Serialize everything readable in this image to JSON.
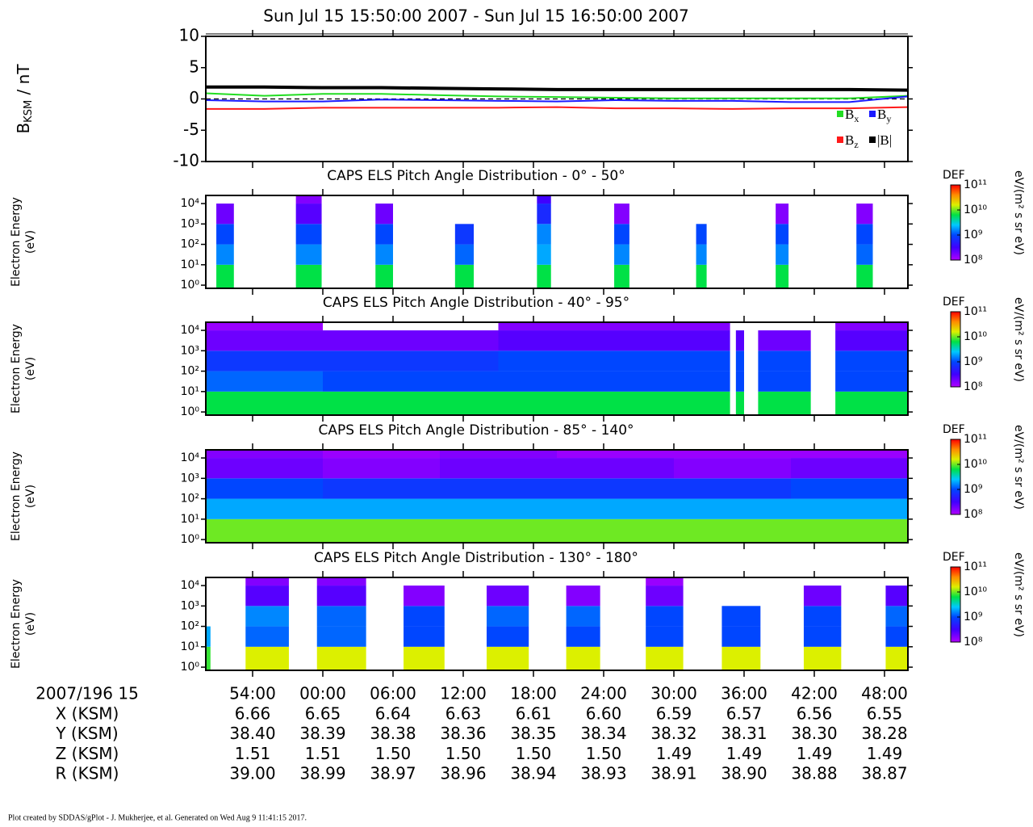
{
  "title": "Sun Jul 15 15:50:00 2007 - Sun Jul 15 16:50:00 2007",
  "footer": "Plot created by SDDAS/gPlot - J. Mukherjee, et al.  Generated on Wed Aug 9 11:41:15 2017.",
  "chart_data": [
    {
      "type": "line",
      "ylabel": [
        "B",
        "KSM",
        " / nT"
      ],
      "xlim": [
        "15:50:00",
        "16:50:00"
      ],
      "xticks": [
        "15:54:00",
        "16:00:00",
        "16:06:00",
        "16:12:00",
        "16:18:00",
        "16:24:00",
        "16:30:00",
        "16:36:00",
        "16:42:00",
        "16:48:00"
      ],
      "ylim": [
        -10,
        10
      ],
      "yticks": [
        -10,
        -5,
        0,
        5,
        10
      ],
      "x": [
        "15:50:00",
        "15:55:00",
        "16:00:00",
        "16:05:00",
        "16:10:00",
        "16:15:00",
        "16:20:00",
        "16:25:00",
        "16:30:00",
        "16:35:00",
        "16:40:00",
        "16:45:00",
        "16:50:00"
      ],
      "series": [
        {
          "name": "Bx",
          "color": "#22dd22",
          "values": [
            0.9,
            0.5,
            0.8,
            0.8,
            0.6,
            0.4,
            0.3,
            0.2,
            0.1,
            0.1,
            0.1,
            0.1,
            0.5
          ]
        },
        {
          "name": "By",
          "color": "#1a1aff",
          "values": [
            -0.2,
            -0.4,
            -0.4,
            -0.1,
            -0.2,
            -0.3,
            -0.4,
            -0.2,
            -0.3,
            -0.3,
            -0.5,
            -0.5,
            0.4
          ]
        },
        {
          "name": "Bz",
          "color": "#ff1a1a",
          "values": [
            -1.6,
            -1.6,
            -1.4,
            -1.4,
            -1.4,
            -1.4,
            -1.3,
            -1.5,
            -1.5,
            -1.6,
            -1.5,
            -1.5,
            -1.3
          ]
        },
        {
          "name": "|B|",
          "color": "#000000",
          "values": [
            1.9,
            1.9,
            1.8,
            1.8,
            1.7,
            1.6,
            1.5,
            1.5,
            1.5,
            1.5,
            1.5,
            1.5,
            1.4
          ]
        }
      ]
    },
    {
      "type": "heatmap",
      "title": "CAPS ELS Pitch Angle Distribution - 0° - 50°",
      "ylabel": [
        "Electron Energy",
        "(eV)"
      ],
      "log": true,
      "ylim": [
        0.7,
        25000
      ],
      "yticks": [
        {
          "value": 1,
          "label": "10⁰"
        },
        {
          "value": 10,
          "label": "10¹"
        },
        {
          "value": 100,
          "label": "10²"
        },
        {
          "value": 1000,
          "label": "10³"
        },
        {
          "value": 10000,
          "label": "10⁴"
        }
      ],
      "xlim": [
        "15:50:00",
        "16:50:00"
      ],
      "xticks": [
        "15:54:00",
        "16:00:00",
        "16:06:00",
        "16:12:00",
        "16:18:00",
        "16:24:00",
        "16:30:00",
        "16:36:00",
        "16:42:00",
        "16:48:00"
      ],
      "bins": [
        "15:50:00",
        "15:50:54",
        "15:52:24",
        "15:57:42",
        "15:59:54",
        "16:04:30",
        "16:06:00",
        "16:11:18",
        "16:12:54",
        "16:18:18",
        "16:19:30",
        "16:24:54",
        "16:26:12",
        "16:31:54",
        "16:32:48",
        "16:38:42",
        "16:39:48",
        "16:45:36",
        "16:47:00",
        "16:50:00"
      ],
      "values": [
        null,
        [
          9.8,
          9.2,
          9.0,
          8.3,
          null
        ],
        null,
        [
          9.8,
          9.2,
          9.0,
          8.4,
          8.2
        ],
        null,
        [
          9.8,
          9.2,
          9.0,
          8.3,
          null
        ],
        null,
        [
          9.8,
          9.1,
          8.9,
          null,
          null
        ],
        null,
        [
          9.8,
          9.3,
          9.2,
          8.8,
          8.5
        ],
        null,
        [
          9.8,
          9.2,
          9.0,
          8.2,
          null
        ],
        null,
        [
          9.8,
          9.2,
          9.0,
          null,
          null
        ],
        null,
        [
          9.8,
          9.2,
          9.0,
          8.2,
          null
        ],
        null,
        [
          9.8,
          9.1,
          9.0,
          8.2,
          null
        ],
        null
      ],
      "colorbar": {
        "label": "DEF",
        "unit": "eV/(m² s sr eV)",
        "lim": [
          8,
          11
        ],
        "ticks": [
          {
            "value": 8,
            "label": "10⁸"
          },
          {
            "value": 9,
            "label": "10⁹"
          },
          {
            "value": 10,
            "label": "10¹⁰"
          },
          {
            "value": 11,
            "label": "10¹¹"
          }
        ]
      }
    },
    {
      "type": "heatmap",
      "title": "CAPS ELS Pitch Angle Distribution - 40° - 95°",
      "ylabel": [
        "Electron Energy",
        "(eV)"
      ],
      "log": true,
      "ylim": [
        0.7,
        25000
      ],
      "yticks": [
        {
          "value": 1,
          "label": "10⁰"
        },
        {
          "value": 10,
          "label": "10¹"
        },
        {
          "value": 100,
          "label": "10²"
        },
        {
          "value": 1000,
          "label": "10³"
        },
        {
          "value": 10000,
          "label": "10⁴"
        }
      ],
      "xlim": [
        "15:50:00",
        "16:50:00"
      ],
      "xticks": [
        "15:54:00",
        "16:00:00",
        "16:06:00",
        "16:12:00",
        "16:18:00",
        "16:24:00",
        "16:30:00",
        "16:36:00",
        "16:42:00",
        "16:48:00"
      ],
      "bins": [
        "15:50:00",
        "16:00:00",
        "16:15:00",
        "16:34:48",
        "16:35:18",
        "16:36:00",
        "16:37:12",
        "16:41:42",
        "16:43:48",
        "16:50:00"
      ],
      "values": [
        [
          9.8,
          9.1,
          8.9,
          8.3,
          8.1
        ],
        [
          9.8,
          9.0,
          8.9,
          8.3,
          null
        ],
        [
          9.8,
          9.0,
          9.0,
          8.4,
          8.2
        ],
        null,
        [
          9.8,
          9.0,
          9.0,
          8.4,
          null
        ],
        null,
        [
          9.8,
          9.0,
          9.0,
          8.3,
          null
        ],
        null,
        [
          9.8,
          9.0,
          9.0,
          8.4,
          8.2
        ]
      ],
      "colorbar": {
        "label": "DEF",
        "unit": "eV/(m² s sr eV)",
        "lim": [
          8,
          11
        ],
        "ticks": [
          {
            "value": 8,
            "label": "10⁸"
          },
          {
            "value": 9,
            "label": "10⁹"
          },
          {
            "value": 10,
            "label": "10¹⁰"
          },
          {
            "value": 11,
            "label": "10¹¹"
          }
        ]
      }
    },
    {
      "type": "heatmap",
      "title": "CAPS ELS Pitch Angle Distribution - 85° - 140°",
      "ylabel": [
        "Electron Energy",
        "(eV)"
      ],
      "log": true,
      "ylim": [
        0.7,
        25000
      ],
      "yticks": [
        {
          "value": 1,
          "label": "10⁰"
        },
        {
          "value": 10,
          "label": "10¹"
        },
        {
          "value": 100,
          "label": "10²"
        },
        {
          "value": 1000,
          "label": "10³"
        },
        {
          "value": 10000,
          "label": "10⁴"
        }
      ],
      "xlim": [
        "15:50:00",
        "16:50:00"
      ],
      "xticks": [
        "15:54:00",
        "16:00:00",
        "16:06:00",
        "16:12:00",
        "16:18:00",
        "16:24:00",
        "16:30:00",
        "16:36:00",
        "16:42:00",
        "16:48:00"
      ],
      "bins": [
        "15:50:00",
        "16:00:00",
        "16:10:00",
        "16:20:00",
        "16:30:00",
        "16:40:00",
        "16:50:00"
      ],
      "values": [
        [
          10.0,
          9.3,
          9.0,
          8.3,
          8.2
        ],
        [
          10.0,
          9.3,
          8.9,
          8.2,
          8.1
        ],
        [
          10.0,
          9.3,
          8.9,
          8.3,
          8.2
        ],
        [
          10.0,
          9.3,
          8.9,
          8.3,
          8.1
        ],
        [
          10.0,
          9.3,
          8.9,
          8.2,
          8.1
        ],
        [
          10.0,
          9.3,
          9.0,
          8.3,
          8.1
        ]
      ],
      "colorbar": {
        "label": "DEF",
        "unit": "eV/(m² s sr eV)",
        "lim": [
          8,
          11
        ],
        "ticks": [
          {
            "value": 8,
            "label": "10⁸"
          },
          {
            "value": 9,
            "label": "10⁹"
          },
          {
            "value": 10,
            "label": "10¹⁰"
          },
          {
            "value": 11,
            "label": "10¹¹"
          }
        ]
      }
    },
    {
      "type": "heatmap",
      "title": "CAPS ELS Pitch Angle Distribution - 130° - 180°",
      "ylabel": [
        "Electron Energy",
        "(eV)"
      ],
      "log": true,
      "ylim": [
        0.7,
        25000
      ],
      "yticks": [
        {
          "value": 1,
          "label": "10⁰"
        },
        {
          "value": 10,
          "label": "10¹"
        },
        {
          "value": 100,
          "label": "10²"
        },
        {
          "value": 1000,
          "label": "10³"
        },
        {
          "value": 10000,
          "label": "10⁴"
        }
      ],
      "xlim": [
        "15:50:00",
        "16:50:00"
      ],
      "xlabel": "2007/196 15",
      "xticks": [
        {
          "value": "15:54:00",
          "label": "54:00"
        },
        {
          "value": "16:00:00",
          "label": "00:00"
        },
        {
          "value": "16:06:00",
          "label": "06:00"
        },
        {
          "value": "16:12:00",
          "label": "12:00"
        },
        {
          "value": "16:18:00",
          "label": "18:00"
        },
        {
          "value": "16:24:00",
          "label": "24:00"
        },
        {
          "value": "16:30:00",
          "label": "30:00"
        },
        {
          "value": "16:36:00",
          "label": "36:00"
        },
        {
          "value": "16:42:00",
          "label": "42:00"
        },
        {
          "value": "16:48:00",
          "label": "48:00"
        }
      ],
      "bins": [
        "15:50:00",
        "15:50:24",
        "15:53:24",
        "15:57:06",
        "15:59:30",
        "16:03:42",
        "16:06:54",
        "16:10:24",
        "16:14:00",
        "16:17:36",
        "16:20:48",
        "16:23:42",
        "16:27:36",
        "16:30:48",
        "16:34:06",
        "16:37:24",
        "16:41:06",
        "16:44:18",
        "16:48:06",
        "16:50:00"
      ],
      "values": [
        [
          9.9,
          9.3,
          null,
          null,
          null
        ],
        null,
        [
          10.2,
          9.1,
          9.2,
          8.4,
          8.2
        ],
        null,
        [
          10.2,
          9.1,
          9.1,
          8.4,
          8.2
        ],
        null,
        [
          10.2,
          9.0,
          9.0,
          8.2,
          null
        ],
        null,
        [
          10.2,
          9.0,
          9.1,
          8.3,
          null
        ],
        null,
        [
          10.2,
          9.0,
          9.1,
          8.2,
          null
        ],
        null,
        [
          10.2,
          9.0,
          9.0,
          8.3,
          8.1
        ],
        null,
        [
          10.2,
          9.0,
          9.0,
          null,
          null
        ],
        null,
        [
          10.2,
          9.0,
          9.0,
          8.3,
          null
        ],
        null,
        [
          10.2,
          9.0,
          9.1,
          8.4,
          null
        ]
      ],
      "colorbar": {
        "label": "DEF",
        "unit": "eV/(m² s sr eV)",
        "lim": [
          8,
          11
        ],
        "ticks": [
          {
            "value": 8,
            "label": "10⁸"
          },
          {
            "value": 9,
            "label": "10⁹"
          },
          {
            "value": 10,
            "label": "10¹⁰"
          },
          {
            "value": 11,
            "label": "10¹¹"
          }
        ]
      }
    }
  ],
  "ephemeris": {
    "rows": [
      {
        "label": "X (KSM)",
        "values": [
          "6.66",
          "6.65",
          "6.64",
          "6.63",
          "6.61",
          "6.60",
          "6.59",
          "6.57",
          "6.56",
          "6.55"
        ]
      },
      {
        "label": "Y (KSM)",
        "values": [
          "38.40",
          "38.39",
          "38.38",
          "38.36",
          "38.35",
          "38.34",
          "38.32",
          "38.31",
          "38.30",
          "38.28"
        ]
      },
      {
        "label": "Z (KSM)",
        "values": [
          "1.51",
          "1.51",
          "1.50",
          "1.50",
          "1.50",
          "1.50",
          "1.49",
          "1.49",
          "1.49",
          "1.49"
        ]
      },
      {
        "label": "R (KSM)",
        "values": [
          "39.00",
          "38.99",
          "38.97",
          "38.96",
          "38.94",
          "38.93",
          "38.91",
          "38.90",
          "38.88",
          "38.87"
        ]
      }
    ]
  }
}
